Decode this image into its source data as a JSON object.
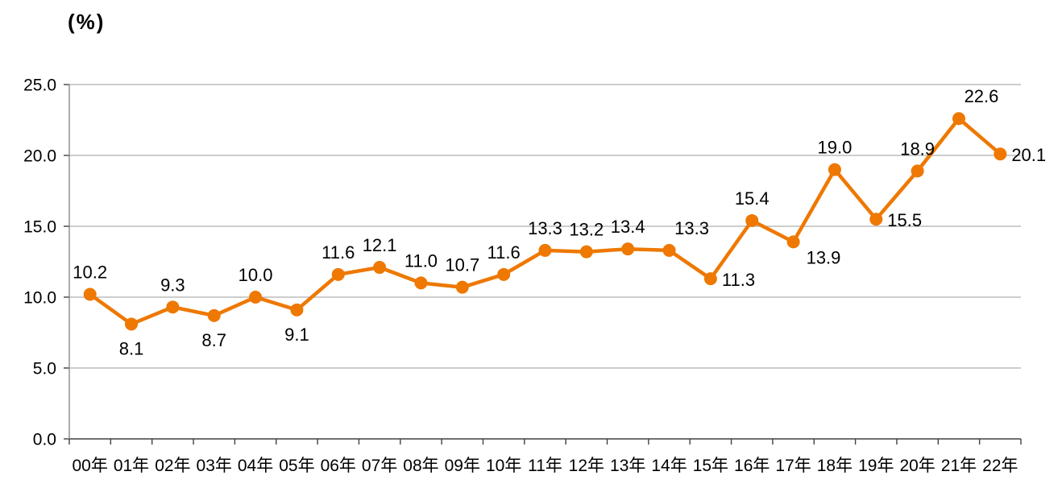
{
  "unit_label": "(%)",
  "chart_data": {
    "type": "line",
    "title": "",
    "unit": "(%)",
    "xlabel": "",
    "ylabel": "(%)",
    "categories": [
      "00年",
      "01年",
      "02年",
      "03年",
      "04年",
      "05年",
      "06年",
      "07年",
      "08年",
      "09年",
      "10年",
      "11年",
      "12年",
      "13年",
      "14年",
      "15年",
      "16年",
      "17年",
      "18年",
      "19年",
      "20年",
      "21年",
      "22年"
    ],
    "values": [
      10.2,
      8.1,
      9.3,
      8.7,
      10.0,
      9.1,
      11.6,
      12.1,
      11.0,
      10.7,
      11.6,
      13.3,
      13.2,
      13.4,
      13.3,
      11.3,
      15.4,
      13.9,
      19.0,
      15.5,
      18.9,
      22.6,
      20.1
    ],
    "data_label_positions": [
      "above",
      "below",
      "above",
      "below",
      "above",
      "below",
      "above",
      "above",
      "above",
      "above",
      "above",
      "above",
      "above",
      "above",
      "above-right",
      "right",
      "above",
      "below-right",
      "above",
      "right",
      "above",
      "above-right",
      "right"
    ],
    "ylim": [
      0,
      25
    ],
    "yticks": [
      "0.0",
      "5.0",
      "10.0",
      "15.0",
      "20.0",
      "25.0"
    ],
    "grid": true,
    "legend": false,
    "marker": "circle",
    "colors": {
      "line": "#ee7800",
      "marker": "#ee7800",
      "grid": "#9b9b9b",
      "axis": "#404040",
      "left_axis": "#808080",
      "text": "#000000"
    }
  }
}
